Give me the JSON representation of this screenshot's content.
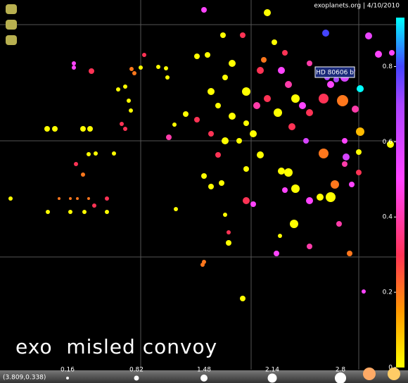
{
  "chart_data": {
    "type": "scatter",
    "credit": "exoplanets.org | 4/10/2010",
    "cursor_readout": "(3.809,0.338)",
    "annotation": "HD 80606 b",
    "overlay_text": "exo  misled convoy",
    "xlim": [
      0,
      565
    ],
    "ylim": [
      0,
      525
    ],
    "xticks": [
      200,
      357,
      510
    ],
    "yticks": [
      160,
      325,
      490
    ],
    "grid": true,
    "color_scale": {
      "lim": [
        0,
        0.93
      ],
      "ticks": [
        0,
        0.2,
        0.4,
        0.6,
        0.8
      ]
    },
    "size_legend": [
      0.16,
      0.82,
      1.48,
      2.14,
      2.8
    ],
    "series": [
      {
        "x": [
          15,
          67,
          78,
          118,
          128,
          68,
          100,
          120,
          152,
          84,
          100,
          110,
          126,
          134,
          152,
          105,
          105,
          130,
          187,
          191,
          205,
          200,
          225,
          236,
          238,
          168,
          178,
          183,
          186,
          173,
          178,
          126,
          136,
          162,
          108,
          118,
          240,
          248,
          250,
          264,
          280,
          295,
          317,
          290,
          380,
          345,
          330,
          320,
          300,
          310,
          330,
          350,
          360,
          340,
          320,
          300,
          280,
          290,
          300,
          315,
          310,
          350,
          350,
          360,
          320,
          325,
          325,
          290,
          288,
          345,
          400,
          410,
          420,
          430,
          440,
          460,
          487,
          470,
          490,
          505,
          512,
          512,
          460,
          465,
          478,
          500,
          463,
          524,
          538,
          557,
          555,
          510,
          490,
          492,
          490,
          510,
          500,
          476,
          470,
          455,
          420,
          410,
          400,
          405,
          440,
          418,
          398,
          393,
          440,
          482,
          497,
          517,
          370,
          380,
          395,
          415,
          440,
          435,
          370,
          350,
          365,
          375,
          390,
          405
        ],
        "values": [
          243,
          342,
          342,
          342,
          342,
          224,
          224,
          224,
          224,
          243,
          243,
          243,
          243,
          233,
          243,
          435,
          429,
          424,
          427,
          421,
          447,
          429,
          430,
          428,
          415,
          398,
          402,
          382,
          368,
          349,
          342,
          306,
          307,
          307,
          292,
          277,
          330,
          348,
          228,
          363,
          445,
          447,
          475,
          511,
          507,
          475,
          435,
          415,
          395,
          375,
          360,
          350,
          335,
          325,
          325,
          335,
          355,
          275,
          260,
          265,
          305,
          285,
          240,
          235,
          220,
          195,
          180,
          153,
          149,
          101,
          425,
          405,
          385,
          375,
          365,
          385,
          382,
          405,
          415,
          370,
          399,
          338,
          307,
          415,
          412,
          425,
          478,
          474,
          448,
          450,
          320,
          309,
          325,
          302,
          292,
          280,
          263,
          263,
          245,
          245,
          257,
          280,
          282,
          255,
          240,
          207,
          190,
          165,
          175,
          207,
          165,
          111,
          305,
          385,
          365,
          345,
          435,
          325,
          425,
          395,
          375,
          440,
          465,
          450
        ],
        "sizes": [
          0.61,
          1.04,
          1.04,
          1.04,
          1.04,
          0.61,
          0.61,
          0.61,
          0.61,
          0.17,
          0.17,
          0.17,
          0.17,
          0.61,
          0.61,
          0.61,
          0.61,
          1.04,
          0.61,
          0.61,
          0.61,
          0.61,
          0.61,
          0.61,
          0.61,
          0.61,
          0.61,
          0.61,
          0.61,
          0.61,
          0.61,
          0.61,
          0.61,
          0.61,
          0.61,
          0.61,
          1.04,
          0.61,
          0.61,
          1.04,
          1.04,
          1.04,
          1.04,
          1.04,
          1.48,
          1.04,
          1.48,
          1.04,
          1.48,
          1.04,
          1.48,
          1.04,
          1.48,
          1.04,
          1.48,
          1.04,
          1.04,
          1.04,
          1.04,
          1.04,
          1.04,
          1.04,
          1.48,
          1.04,
          0.61,
          0.61,
          1.04,
          0.61,
          0.61,
          1.04,
          1.48,
          1.48,
          1.91,
          1.48,
          1.48,
          2.35,
          2.78,
          1.48,
          1.91,
          1.48,
          1.48,
          1.91,
          2.35,
          1.04,
          1.04,
          1.48,
          1.48,
          1.48,
          1.48,
          1.04,
          1.48,
          1.04,
          1.04,
          1.48,
          1.04,
          1.04,
          1.04,
          1.91,
          2.35,
          1.48,
          1.91,
          1.91,
          1.48,
          1.04,
          1.48,
          1.91,
          0.61,
          1.04,
          1.04,
          1.04,
          1.04,
          0.61,
          1.48,
          1.48,
          1.91,
          1.48,
          1.04,
          1.04,
          1.48,
          1.91,
          1.48,
          1.04,
          1.04,
          1.04
        ],
        "color_values": [
          0,
          0,
          0,
          0,
          0,
          0,
          0,
          0,
          0,
          0.2,
          0.2,
          0.2,
          0.2,
          0.3,
          0.3,
          0.5,
          0.5,
          0.3,
          0.2,
          0.2,
          0.3,
          0,
          0,
          0,
          0,
          0,
          0,
          0,
          0,
          0.3,
          0.3,
          0,
          0,
          0,
          0.3,
          0.2,
          0.4,
          0,
          0,
          0,
          0,
          0,
          0,
          0.5,
          0,
          0.3,
          0,
          0,
          0,
          0,
          0,
          0,
          0,
          0,
          0,
          0.3,
          0.3,
          0,
          0,
          0,
          0.3,
          0,
          0.3,
          0.5,
          0,
          0.3,
          0,
          0.2,
          0.2,
          0,
          0.5,
          0.4,
          0,
          0.5,
          0.3,
          0.3,
          0.2,
          0.5,
          0.6,
          0.4,
          0.93,
          0.1,
          0.2,
          0.7,
          0.7,
          0.7,
          0.8,
          0.55,
          0.5,
          0.5,
          0,
          0,
          0.5,
          0.6,
          0.4,
          0.3,
          0.5,
          0.2,
          0,
          0,
          0,
          0,
          0,
          0.5,
          0.5,
          0,
          0,
          0.5,
          0.4,
          0.4,
          0.2,
          0.5,
          0,
          0.3,
          0,
          0.3,
          0.4,
          0.6,
          0.3,
          0,
          0.4,
          0.2,
          0,
          0.3
        ]
      }
    ]
  }
}
